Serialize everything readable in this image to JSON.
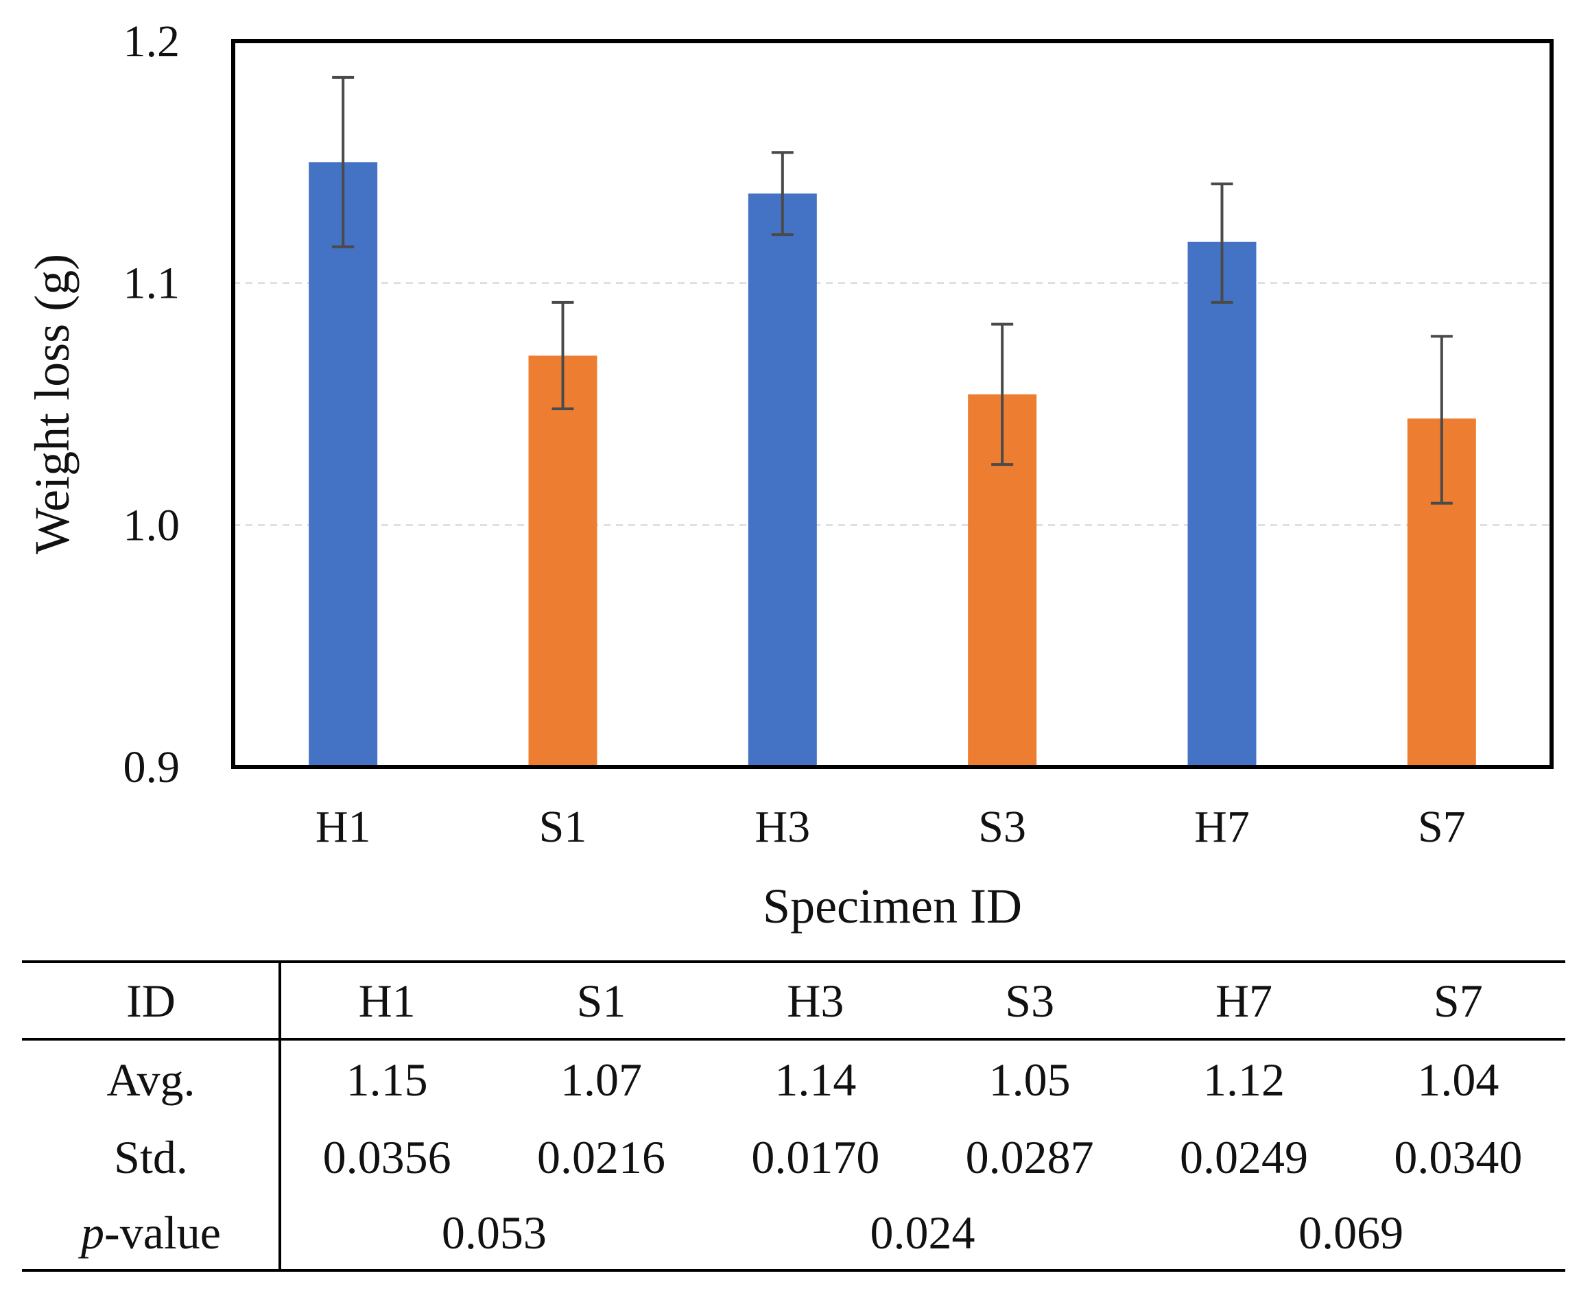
{
  "chart_data": {
    "type": "bar",
    "xlabel": "Specimen ID",
    "ylabel": "Weight loss (g)",
    "ylim": [
      0.9,
      1.2
    ],
    "yticks": [
      "0.9",
      "1.0",
      "1.1",
      "1.2"
    ],
    "grid": "horizontal dashed",
    "categories": [
      "H1",
      "S1",
      "H3",
      "S3",
      "H7",
      "S7"
    ],
    "values": [
      1.15,
      1.07,
      1.137,
      1.054,
      1.117,
      1.044
    ],
    "error_low": [
      1.115,
      1.048,
      1.12,
      1.025,
      1.092,
      1.009
    ],
    "error_high": [
      1.185,
      1.092,
      1.154,
      1.083,
      1.141,
      1.078
    ],
    "colors": [
      "#4472C4",
      "#ED7D31",
      "#4472C4",
      "#ED7D31",
      "#4472C4",
      "#ED7D31"
    ]
  },
  "table": {
    "header": {
      "label": "ID",
      "cells": [
        "H1",
        "S1",
        "H3",
        "S3",
        "H7",
        "S7"
      ]
    },
    "rows": [
      {
        "label": "Avg.",
        "cells": [
          "1.15",
          "1.07",
          "1.14",
          "1.05",
          "1.12",
          "1.04"
        ]
      },
      {
        "label": "Std.",
        "cells": [
          "0.0356",
          "0.0216",
          "0.0170",
          "0.0287",
          "0.0249",
          "0.0340"
        ]
      }
    ],
    "pvalue": {
      "label_italic": "p",
      "label_rest": "-value",
      "cells": [
        "0.053",
        "0.024",
        "0.069"
      ]
    }
  }
}
